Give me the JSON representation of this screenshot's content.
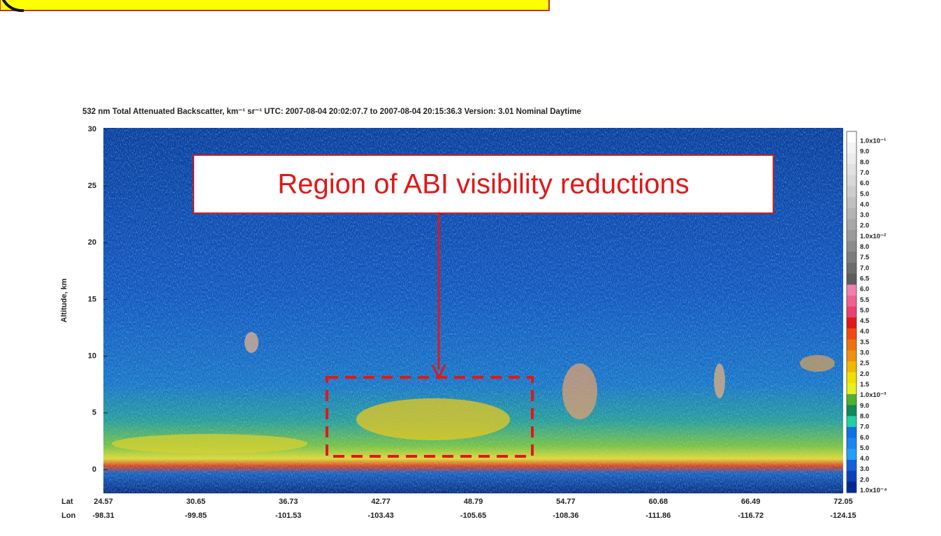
{
  "chart_data": {
    "type": "curtain",
    "title": "532 nm Total Attenuated Backscatter, km⁻¹ sr⁻¹    UTC:  2007-08-04 20:02:07.7  to  2007-08-04 20:15:36.3    Version: 3.01  Nominal  Daytime",
    "y_label": "Altitude, km",
    "ylim": [
      0,
      30
    ],
    "yticks": [
      0,
      5,
      10,
      15,
      20,
      25,
      30
    ],
    "x_row_labels": [
      "Lat",
      "Lon"
    ],
    "lat": [
      "24.57",
      "30.65",
      "36.73",
      "42.77",
      "48.79",
      "54.77",
      "60.68",
      "66.49",
      "72.05"
    ],
    "lon": [
      "-98.31",
      "-99.85",
      "-101.53",
      "-103.43",
      "-105.65",
      "-108.36",
      "-111.86",
      "-116.72",
      "-124.15"
    ],
    "colorbar_labels": [
      "1.0x10⁻¹",
      "9.0",
      "8.0",
      "7.0",
      "6.0",
      "5.0",
      "4.0",
      "3.0",
      "2.0",
      "1.0x10⁻²",
      "8.0",
      "7.5",
      "7.0",
      "6.5",
      "6.0",
      "5.5",
      "5.0",
      "4.5",
      "4.0",
      "3.5",
      "3.0",
      "2.5",
      "2.0",
      "1.5",
      "1.0x10⁻³",
      "9.0",
      "8.0",
      "7.0",
      "6.0",
      "5.0",
      "4.0",
      "3.0",
      "2.0",
      "1.0x10⁻⁴"
    ],
    "annotation": "Region of ABI visibility reductions"
  }
}
